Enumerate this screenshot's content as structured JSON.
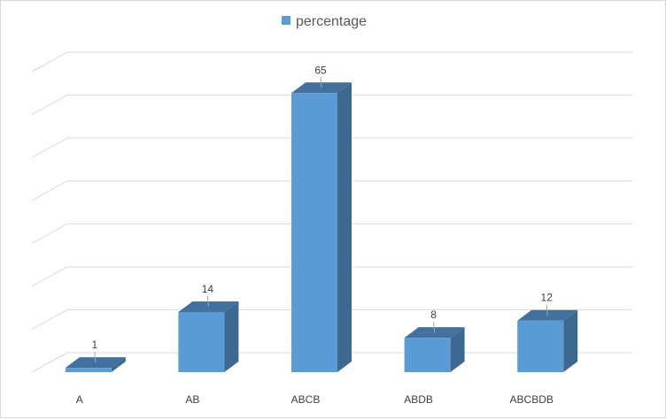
{
  "chart_data": {
    "type": "bar",
    "categories": [
      "A",
      "AB",
      "ABCB",
      "ABDB",
      "ABCBDB"
    ],
    "series": [
      {
        "name": "percentage",
        "values": [
          1,
          14,
          65,
          8,
          12
        ]
      }
    ],
    "data_labels": [
      "1",
      "14",
      "65",
      "8",
      "12"
    ],
    "ylim": [
      0,
      70
    ],
    "grid": true,
    "legend": "top",
    "three_d": true,
    "colors": {
      "front": "#5b9bd5",
      "side": "#3d6890",
      "top": "#41719c",
      "grid": "#d9d9d9",
      "leader": "#a6a6a6"
    }
  }
}
